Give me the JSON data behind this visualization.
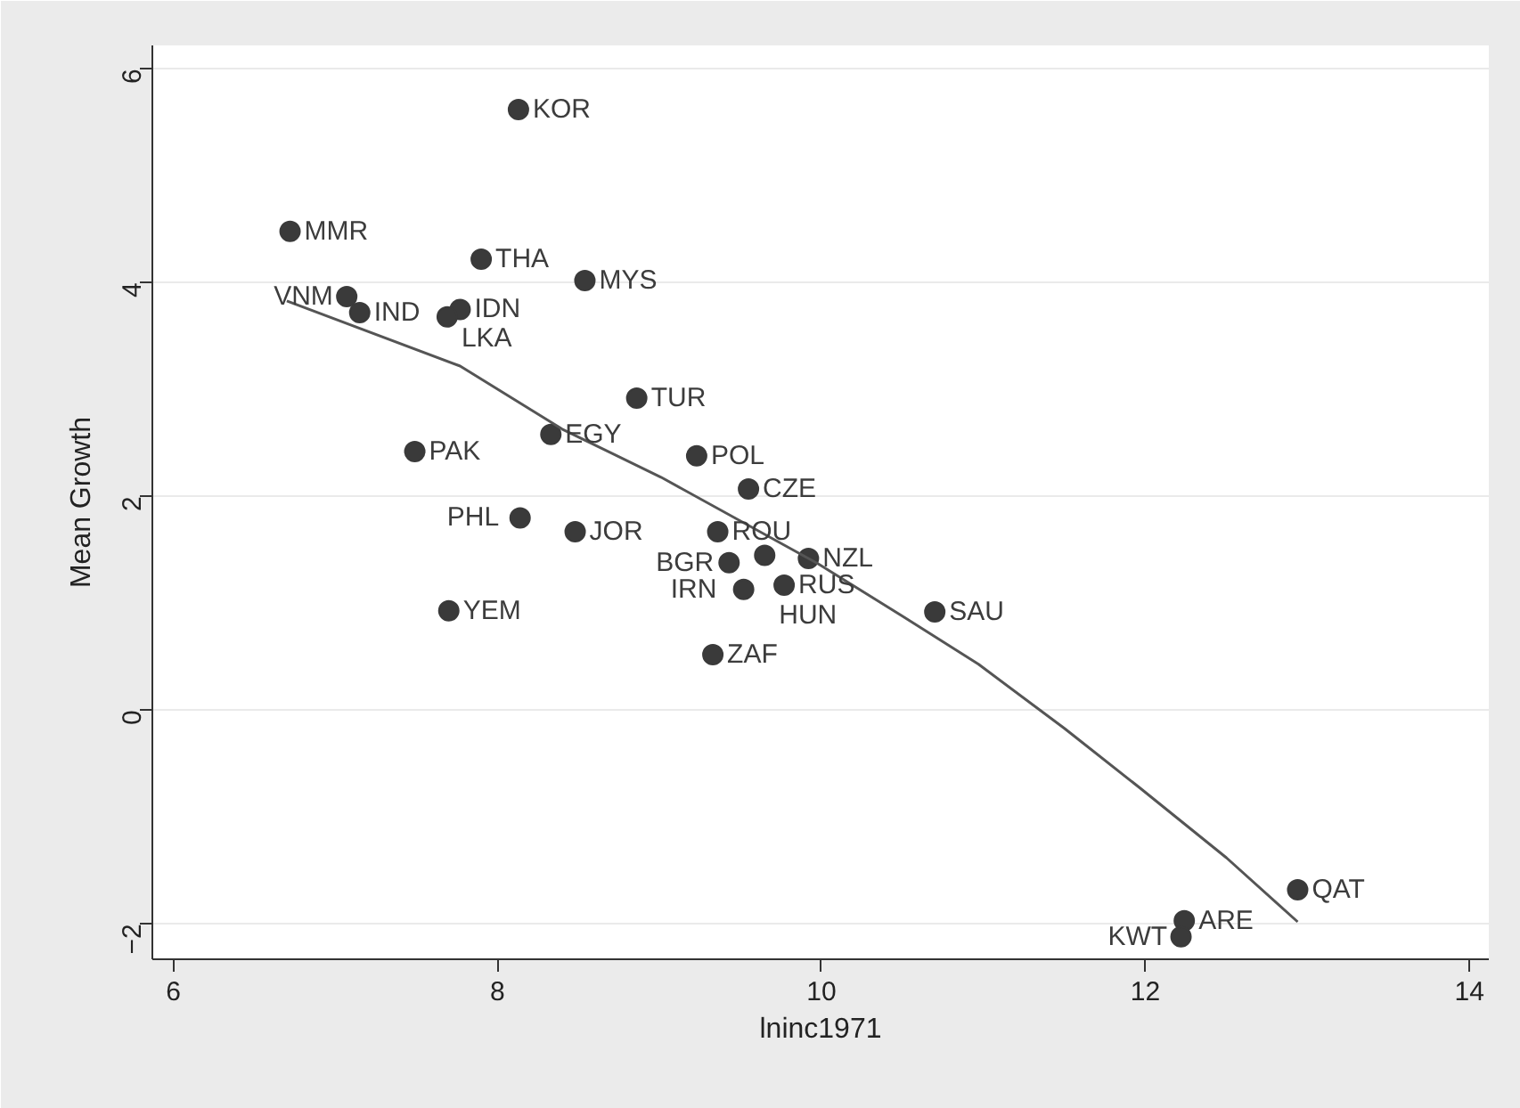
{
  "chart_data": {
    "type": "scatter",
    "xlabel": "lninc1971",
    "ylabel": "Mean Growth",
    "xlim": [
      5.87,
      14.12
    ],
    "ylim": [
      -2.33,
      6.22
    ],
    "xticks": [
      6,
      8,
      10,
      12,
      14
    ],
    "yticks": [
      -2,
      0,
      2,
      4,
      6
    ],
    "grid": "y",
    "series": [
      {
        "type": "scatter",
        "marker": "circle",
        "color": "#3a3a3a",
        "x": [
          8.13,
          6.72,
          7.9,
          8.54,
          7.07,
          7.15,
          7.77,
          7.69,
          8.86,
          8.33,
          7.49,
          9.23,
          9.55,
          8.14,
          8.48,
          9.36,
          9.43,
          9.65,
          9.92,
          9.52,
          9.77,
          7.7,
          10.7,
          9.33,
          12.94,
          12.24,
          12.22
        ],
        "values": [
          5.62,
          4.48,
          4.22,
          4.02,
          3.87,
          3.72,
          3.75,
          3.68,
          2.92,
          2.58,
          2.42,
          2.38,
          2.07,
          1.8,
          1.67,
          1.67,
          1.38,
          1.45,
          1.42,
          1.13,
          1.17,
          0.93,
          0.92,
          0.52,
          -1.68,
          -1.97,
          -2.12
        ]
      },
      {
        "type": "line",
        "marker": "none",
        "color": "#555555",
        "x": [
          6.7,
          7.77,
          8.4,
          9.01,
          9.98,
          10.5,
          10.97,
          11.5,
          11.96,
          12.5,
          12.94
        ],
        "values": [
          3.83,
          3.22,
          2.63,
          2.18,
          1.37,
          0.88,
          0.43,
          -0.17,
          -0.72,
          -1.38,
          -1.98
        ]
      }
    ],
    "annotations": [
      {
        "text": "KOR",
        "x": 8.13,
        "y": 5.62
      },
      {
        "text": "MMR",
        "x": 6.72,
        "y": 4.48
      },
      {
        "text": "THA",
        "x": 7.9,
        "y": 4.22
      },
      {
        "text": "MYS",
        "x": 8.54,
        "y": 4.02
      },
      {
        "text": "VNM",
        "x": 7.07,
        "y": 3.87
      },
      {
        "text": "IND",
        "x": 7.15,
        "y": 3.72
      },
      {
        "text": "IDN",
        "x": 7.77,
        "y": 3.75
      },
      {
        "text": "LKA",
        "x": 7.69,
        "y": 3.68
      },
      {
        "text": "TUR",
        "x": 8.86,
        "y": 2.92
      },
      {
        "text": "EGY",
        "x": 8.33,
        "y": 2.58
      },
      {
        "text": "PAK",
        "x": 7.49,
        "y": 2.42
      },
      {
        "text": "POL",
        "x": 9.23,
        "y": 2.38
      },
      {
        "text": "CZE",
        "x": 9.55,
        "y": 2.07
      },
      {
        "text": "PHL",
        "x": 8.14,
        "y": 1.8
      },
      {
        "text": "JOR",
        "x": 8.48,
        "y": 1.67
      },
      {
        "text": "ROU",
        "x": 9.36,
        "y": 1.67
      },
      {
        "text": "BGR",
        "x": 9.43,
        "y": 1.38
      },
      {
        "text": "HUN",
        "x": 9.65,
        "y": 1.45
      },
      {
        "text": "NZL",
        "x": 9.92,
        "y": 1.42
      },
      {
        "text": "IRN",
        "x": 9.52,
        "y": 1.13
      },
      {
        "text": "RUS",
        "x": 9.77,
        "y": 1.17
      },
      {
        "text": "YEM",
        "x": 7.7,
        "y": 0.93
      },
      {
        "text": "SAU",
        "x": 10.7,
        "y": 0.92
      },
      {
        "text": "ZAF",
        "x": 9.33,
        "y": 0.52
      },
      {
        "text": "QAT",
        "x": 12.94,
        "y": -1.68
      },
      {
        "text": "ARE",
        "x": 12.24,
        "y": -1.97
      },
      {
        "text": "KWT",
        "x": 12.22,
        "y": -2.12
      }
    ]
  }
}
